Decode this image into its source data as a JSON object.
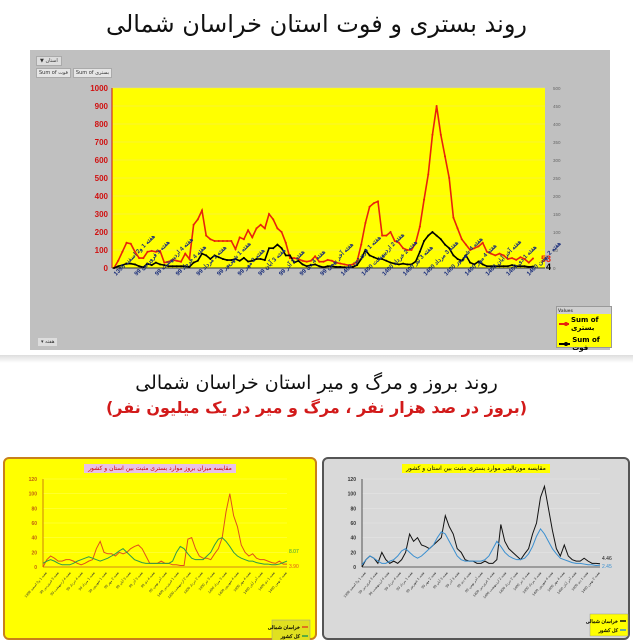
{
  "header": {
    "title_main": "روند بستری و فوت استان خراسان شمالی",
    "section2_title": "روند بروز و مرگ و میر استان خراسان شمالی",
    "section2_subtitle": "(بروز در صد هزار نفر ، مرگ و میر در یک میلیون نفر)"
  },
  "pivot_controls": {
    "filter_label": "استان",
    "field_buttons": [
      "Sum of فوت",
      "Sum of بستری"
    ],
    "axis_button": "هفته",
    "legend_header": "Values"
  },
  "colors": {
    "hospitalized": "#e8220c",
    "deaths": "#000000",
    "plot_bg": "#ffff00",
    "panel_bg": "#c0c0c0",
    "province_small": "#e0501a",
    "country_small_left": "#2e9a4a",
    "province_small_right": "#111111",
    "country_small_right": "#3a8fd0"
  },
  "chart_data": [
    {
      "type": "line",
      "title": "روند بستری و فوت استان خراسان شمالی",
      "ylabel_left": "Sum of بستری",
      "ylabel_right": "Sum of فوت",
      "ylim_left": [
        0,
        1000
      ],
      "ylim_right": [
        0,
        500
      ],
      "yticks_left": [
        0,
        100,
        200,
        300,
        400,
        500,
        600,
        700,
        800,
        900,
        1000
      ],
      "yticks_right": [
        0,
        50,
        100,
        150,
        200,
        250,
        300,
        350,
        400,
        450,
        500
      ],
      "xtick_labels": [
        "هفته 1 و2 اسفند 1398",
        "هفته 3 فروردین 99",
        "هفته 4 اردیبهشت 99",
        "هفته 4 خرداد 99",
        "هفته 1 مرداد 99",
        "هفته 1 شهریور 99",
        "هفته 2 مهر 99",
        "هفته 3 آبان 99",
        "هفته 3 آذر 99",
        "هفته 4 دی 99",
        "هفته آخر بهمن 99",
        "هفته 1 فروردین 1400",
        "هفته 2 اردیبهشت 1400",
        "هفته 2 خرداد 1400",
        "هفته 3 تیر 1400",
        "هفته 3 مرداد 1400",
        "هفته 4 شهریور 1400",
        "هفته 4 مهر 1400",
        "هفته آخر آبان 1400",
        "هفته 1 دی 1400",
        "هفته 2 بهمن 1400"
      ],
      "legend": [
        "Sum of بستری",
        "Sum of فوت"
      ],
      "legend_position": "bottom-right",
      "end_labels": {
        "hospitalized": "53",
        "deaths": "4"
      },
      "series": [
        {
          "name": "Sum of بستری",
          "axis": "left",
          "color": "#e8220c",
          "values": [
            0,
            40,
            90,
            140,
            135,
            90,
            55,
            55,
            90,
            95,
            90,
            95,
            30,
            35,
            45,
            40,
            35,
            80,
            50,
            240,
            270,
            320,
            180,
            160,
            150,
            150,
            150,
            150,
            150,
            105,
            170,
            160,
            210,
            170,
            220,
            240,
            220,
            300,
            270,
            220,
            200,
            140,
            55,
            55,
            50,
            40,
            35,
            40,
            65,
            35,
            35,
            45,
            40,
            30,
            25,
            20,
            15,
            20,
            35,
            130,
            250,
            340,
            360,
            370,
            180,
            180,
            200,
            150,
            140,
            110,
            100,
            100,
            140,
            230,
            380,
            520,
            740,
            900,
            740,
            620,
            500,
            280,
            220,
            160,
            130,
            100,
            110,
            120,
            140,
            90,
            80,
            70,
            80,
            70,
            50,
            55,
            45,
            60,
            50,
            30,
            53
          ]
        },
        {
          "name": "Sum of فوت",
          "axis": "right",
          "color": "#000000",
          "values": [
            0,
            5,
            8,
            12,
            12,
            10,
            5,
            2,
            12,
            8,
            15,
            10,
            8,
            5,
            5,
            5,
            5,
            5,
            3,
            15,
            20,
            40,
            35,
            25,
            35,
            30,
            25,
            22,
            22,
            25,
            20,
            28,
            18,
            20,
            25,
            25,
            22,
            55,
            55,
            65,
            55,
            35,
            35,
            15,
            20,
            10,
            5,
            8,
            10,
            5,
            2,
            5,
            5,
            3,
            3,
            2,
            2,
            3,
            8,
            25,
            50,
            35,
            30,
            25,
            25,
            20,
            15,
            12,
            10,
            12,
            10,
            10,
            18,
            45,
            75,
            90,
            100,
            90,
            80,
            65,
            55,
            35,
            25,
            20,
            35,
            15,
            10,
            18,
            10,
            5,
            5,
            5,
            5,
            5,
            5,
            8,
            5,
            5,
            5,
            3,
            4
          ]
        }
      ]
    },
    {
      "type": "line",
      "title": "مقایسه میزان بروز موارد بستری مثبت بین استان و کشور",
      "ylim": [
        0,
        120
      ],
      "yticks": [
        0,
        20,
        40,
        60,
        80,
        100,
        120
      ],
      "legend": [
        "خراسان شمالی",
        "کل کشور"
      ],
      "end_labels": {
        "province": "3.90",
        "country": "8.07"
      },
      "series": [
        {
          "name": "خراسان شمالی",
          "color": "#e0501a",
          "values": [
            0,
            10,
            15,
            12,
            8,
            8,
            10,
            10,
            8,
            5,
            3,
            5,
            8,
            10,
            25,
            35,
            20,
            18,
            18,
            15,
            20,
            18,
            20,
            25,
            28,
            30,
            25,
            15,
            5,
            5,
            5,
            8,
            5,
            5,
            3,
            3,
            2,
            2,
            38,
            40,
            25,
            15,
            12,
            12,
            10,
            18,
            25,
            40,
            75,
            100,
            70,
            55,
            30,
            20,
            15,
            18,
            12,
            10,
            10,
            8,
            6,
            5,
            8,
            4,
            3.9
          ]
        },
        {
          "name": "کل کشور",
          "color": "#2e9a4a",
          "values": [
            5,
            8,
            10,
            8,
            5,
            3,
            3,
            3,
            5,
            8,
            10,
            12,
            14,
            12,
            10,
            8,
            10,
            12,
            15,
            18,
            22,
            25,
            20,
            15,
            10,
            8,
            6,
            5,
            5,
            5,
            5,
            5,
            5,
            5,
            8,
            20,
            28,
            25,
            18,
            12,
            10,
            10,
            10,
            15,
            20,
            30,
            38,
            40,
            35,
            28,
            20,
            15,
            12,
            10,
            8,
            8,
            6,
            5,
            4,
            4,
            3,
            3,
            4,
            6,
            8.07
          ]
        }
      ]
    },
    {
      "type": "line",
      "title": "مقایسه مورتالیتی موارد بستری مثبت بین استان و کشور",
      "ylim": [
        0,
        120
      ],
      "yticks": [
        0,
        20,
        40,
        60,
        80,
        100,
        120
      ],
      "legend": [
        "خراسان شمالی",
        "کل کشور"
      ],
      "end_labels": {
        "province": "4.46",
        "country": "2.45"
      },
      "series": [
        {
          "name": "خراسان شمالی",
          "color": "#111111",
          "values": [
            0,
            10,
            15,
            12,
            5,
            20,
            10,
            5,
            8,
            5,
            10,
            20,
            45,
            35,
            40,
            30,
            28,
            25,
            30,
            35,
            40,
            70,
            55,
            45,
            25,
            20,
            10,
            8,
            8,
            5,
            5,
            8,
            5,
            5,
            10,
            58,
            35,
            25,
            20,
            15,
            10,
            18,
            25,
            45,
            60,
            95,
            110,
            80,
            50,
            25,
            15,
            30,
            15,
            10,
            8,
            8,
            12,
            8,
            5,
            5,
            4.46
          ]
        },
        {
          "name": "کل کشور",
          "color": "#3a8fd0",
          "values": [
            3,
            10,
            15,
            12,
            8,
            5,
            5,
            8,
            10,
            15,
            22,
            25,
            20,
            15,
            12,
            15,
            20,
            25,
            30,
            40,
            48,
            45,
            35,
            25,
            15,
            10,
            8,
            8,
            8,
            8,
            8,
            10,
            15,
            25,
            35,
            28,
            20,
            15,
            12,
            10,
            10,
            12,
            18,
            28,
            42,
            52,
            45,
            35,
            25,
            18,
            12,
            10,
            8,
            6,
            5,
            5,
            4,
            3,
            3,
            2,
            2.45
          ]
        }
      ]
    }
  ]
}
